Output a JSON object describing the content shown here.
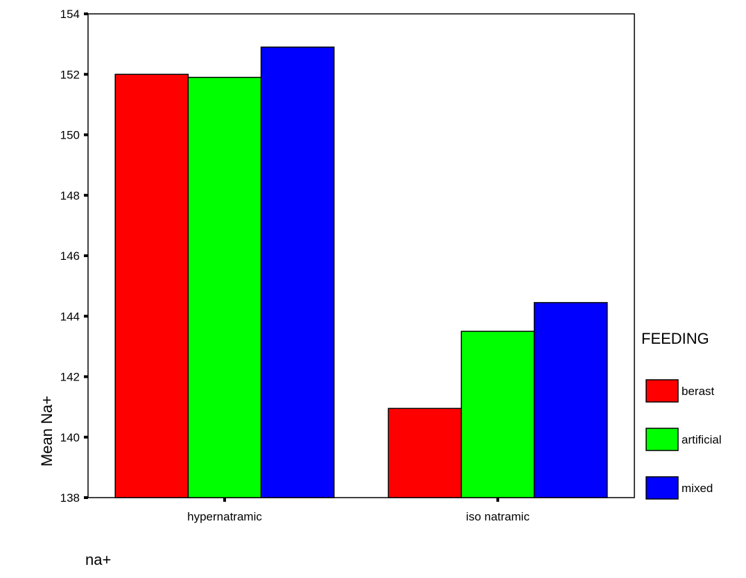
{
  "chart_data": {
    "type": "bar",
    "categories": [
      "hypernatramic",
      "iso natramic"
    ],
    "series": [
      {
        "name": "berast",
        "color": "#ff0000",
        "values": [
          152.0,
          140.95
        ]
      },
      {
        "name": "artificial",
        "color": "#00ff00",
        "values": [
          151.9,
          143.5
        ]
      },
      {
        "name": "mixed",
        "color": "#0000ff",
        "values": [
          152.9,
          144.45
        ]
      }
    ],
    "ylim": [
      138,
      154
    ],
    "yticks": [
      "138",
      "140",
      "142",
      "144",
      "146",
      "148",
      "150",
      "152",
      "154"
    ],
    "ylabel": "Mean Na+",
    "xlabel": "na+",
    "legend_title": "FEEDING",
    "legend_position": "right",
    "grid": false
  }
}
